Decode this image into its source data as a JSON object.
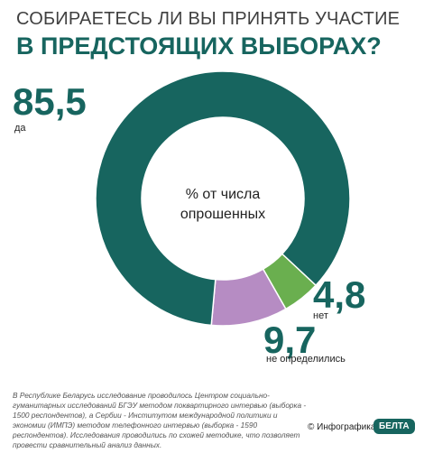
{
  "chart_data": {
    "type": "pie",
    "title": "СОБИРАЕТЕСЬ ЛИ ВЫ ПРИНЯТЬ УЧАСТИЕ",
    "subtitle": "В ПРЕДСТОЯЩИХ ВЫБОРАХ?",
    "center_label": "% от числа опрошенных",
    "categories": [
      "да",
      "нет",
      "не определились"
    ],
    "values": [
      85.5,
      4.8,
      9.7
    ],
    "value_labels": [
      "85,5",
      "4,8",
      "9,7"
    ],
    "colors": [
      "#17655f",
      "#6aaf4f",
      "#b68cc3"
    ],
    "donut": true
  },
  "footnote": "В Республике Беларусь исследование проводилось Центром социально-гуманитарных исследований БГЭУ методом поквартирного интервью (выборка - 1500 респондентов), а Сербии - Институтом международной политики и экономии (ИМПЭ) методом телефонного интервью (выборка - 1590 респондентов). Исследования проводились по схожей методике, что позволяет провести сравнительный анализ данных.",
  "credit": "© Инфографика",
  "logo": "БЕЛТА"
}
